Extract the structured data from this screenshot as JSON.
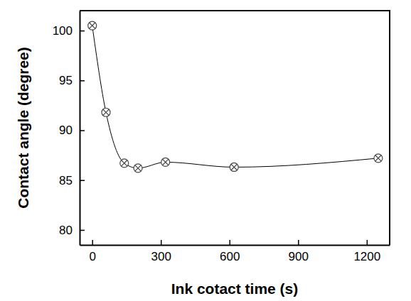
{
  "chart_data": {
    "type": "line",
    "x_label": "Ink cotact time (s)",
    "y_label": "Contact angle (degree)",
    "x": [
      0,
      60,
      140,
      200,
      320,
      620,
      1250
    ],
    "values": [
      100.5,
      91.8,
      86.7,
      86.2,
      86.8,
      86.3,
      87.2
    ],
    "color": "#000000",
    "marker": "circle-x",
    "xlim": [
      -55,
      1300
    ],
    "xticks": [
      0,
      300,
      600,
      900,
      1200
    ],
    "ylim": [
      78.5,
      102
    ],
    "yticks": [
      80,
      85,
      90,
      95,
      100
    ],
    "grid": false
  }
}
